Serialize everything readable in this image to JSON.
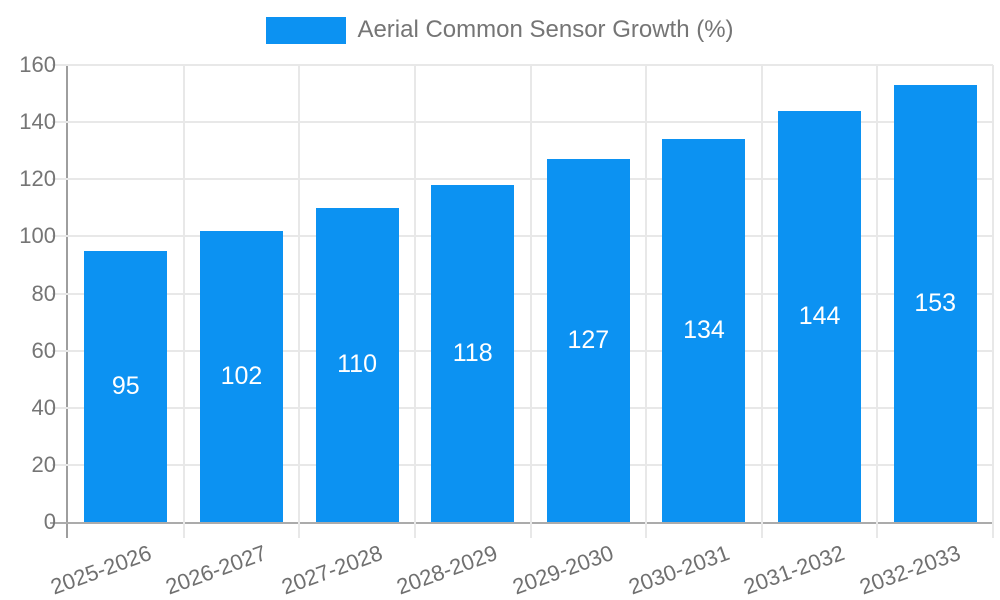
{
  "legend": {
    "label": "Aerial Common Sensor Growth (%)"
  },
  "colors": {
    "bar": "#0c92f2",
    "legend_text": "#757575",
    "tick_text": "#757575",
    "gridline": "#e8e8e8",
    "y_axis_line": "#9e9e9e",
    "x_axis_line": "#ababab",
    "value_label_text": "#ffffff",
    "background": "#ffffff"
  },
  "chart_data": {
    "type": "bar",
    "title": "",
    "legend_entries": [
      "Aerial Common Sensor Growth (%)"
    ],
    "legend_position": "top-center",
    "categories": [
      "2025-2026",
      "2026-2027",
      "2027-2028",
      "2028-2029",
      "2029-2030",
      "2030-2031",
      "2031-2032",
      "2032-2033"
    ],
    "values": [
      95,
      102,
      110,
      118,
      127,
      134,
      144,
      153
    ],
    "value_labels_shown": true,
    "value_label_position": "inside-middle",
    "xlabel": "",
    "ylabel": "",
    "ylim": [
      0,
      160
    ],
    "yticks": [
      0,
      20,
      40,
      60,
      80,
      100,
      120,
      140,
      160
    ],
    "grid": true,
    "x_tick_rotation_deg": -20
  }
}
